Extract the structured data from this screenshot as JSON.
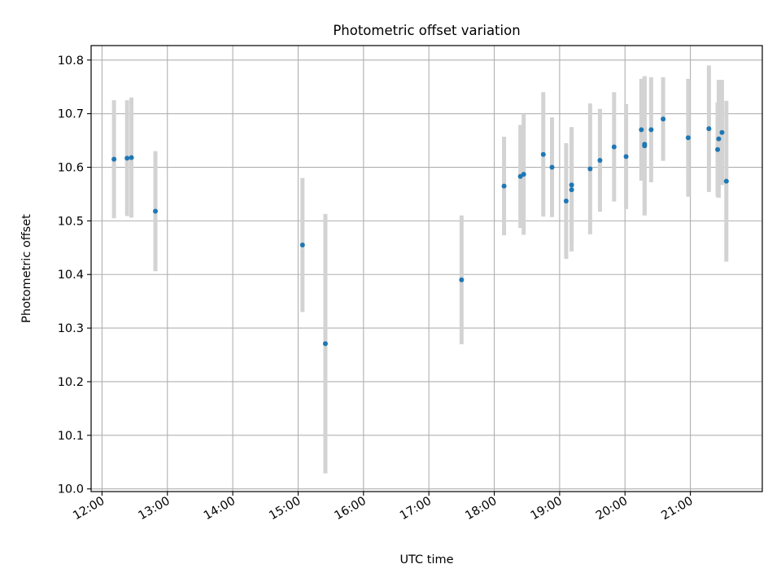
{
  "chart_data": {
    "type": "scatter",
    "title": "Photometric offset variation",
    "xlabel": "UTC time",
    "ylabel": "Photometric offset",
    "x_ticks": [
      "12:00",
      "13:00",
      "14:00",
      "15:00",
      "16:00",
      "17:00",
      "18:00",
      "19:00",
      "20:00",
      "21:00"
    ],
    "y_ticks": [
      "10.0",
      "10.1",
      "10.2",
      "10.3",
      "10.4",
      "10.5",
      "10.6",
      "10.7",
      "10.8"
    ],
    "xlim": [
      "11:50",
      "22:06"
    ],
    "ylim": [
      9.995,
      10.827
    ],
    "grid": true,
    "colors": {
      "point": "#1f77b4",
      "errorbar": "#d3d3d3",
      "grid": "#b0b0b0"
    },
    "points": [
      {
        "x": "12:11",
        "y": 10.615,
        "err": 0.11
      },
      {
        "x": "12:23",
        "y": 10.617,
        "err": 0.108
      },
      {
        "x": "12:27",
        "y": 10.618,
        "err": 0.112
      },
      {
        "x": "12:49",
        "y": 10.518,
        "err": 0.112
      },
      {
        "x": "15:04",
        "y": 10.455,
        "err": 0.125
      },
      {
        "x": "15:25",
        "y": 10.271,
        "err": 0.242
      },
      {
        "x": "17:30",
        "y": 10.39,
        "err": 0.12
      },
      {
        "x": "18:09",
        "y": 10.565,
        "err": 0.092
      },
      {
        "x": "18:24",
        "y": 10.583,
        "err": 0.096
      },
      {
        "x": "18:27",
        "y": 10.587,
        "err": 0.113
      },
      {
        "x": "18:45",
        "y": 10.624,
        "err": 0.116
      },
      {
        "x": "18:53",
        "y": 10.6,
        "err": 0.093
      },
      {
        "x": "19:06",
        "y": 10.537,
        "err": 0.108
      },
      {
        "x": "19:11",
        "y": 10.567,
        "err": 0.108
      },
      {
        "x": "19:11",
        "y": 10.558,
        "err": 0.115
      },
      {
        "x": "19:28",
        "y": 10.597,
        "err": 0.122
      },
      {
        "x": "19:37",
        "y": 10.613,
        "err": 0.096
      },
      {
        "x": "19:50",
        "y": 10.638,
        "err": 0.102
      },
      {
        "x": "20:01",
        "y": 10.62,
        "err": 0.098
      },
      {
        "x": "20:15",
        "y": 10.67,
        "err": 0.095
      },
      {
        "x": "20:18",
        "y": 10.643,
        "err": 0.127
      },
      {
        "x": "20:18",
        "y": 10.64,
        "err": 0.13
      },
      {
        "x": "20:24",
        "y": 10.67,
        "err": 0.098
      },
      {
        "x": "20:35",
        "y": 10.69,
        "err": 0.078
      },
      {
        "x": "20:58",
        "y": 10.655,
        "err": 0.11
      },
      {
        "x": "21:17",
        "y": 10.672,
        "err": 0.118
      },
      {
        "x": "21:25",
        "y": 10.633,
        "err": 0.088
      },
      {
        "x": "21:26",
        "y": 10.653,
        "err": 0.11
      },
      {
        "x": "21:29",
        "y": 10.665,
        "err": 0.098
      },
      {
        "x": "21:33",
        "y": 10.574,
        "err": 0.15
      }
    ]
  }
}
